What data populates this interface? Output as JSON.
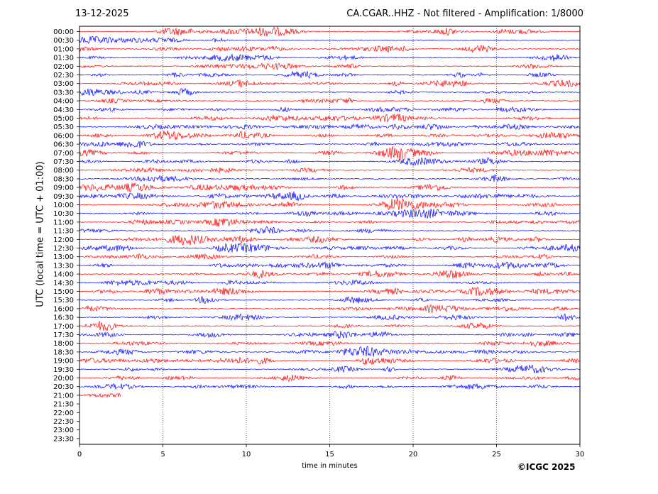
{
  "header": {
    "date": "13-12-2025",
    "title": "CA.CGAR..HHZ - Not filtered - Amplification: 1/8000"
  },
  "footer": {
    "copyright": "©ICGC 2025"
  },
  "colors": {
    "odd_trace": "#ff0000",
    "even_trace": "#0000ff",
    "axis": "#000000",
    "grid": "#000000"
  },
  "chart_data": {
    "type": "line",
    "title": "CA.CGAR..HHZ - Not filtered - Amplification: 1/8000",
    "xlabel": "time in minutes",
    "ylabel": "UTC (local time = UTC + 01:00)",
    "xlim": [
      0,
      30
    ],
    "x_ticks": [
      "0",
      "5",
      "10",
      "15",
      "20",
      "25",
      "30"
    ],
    "grid": "vertical dotted lines at each x tick",
    "row_labels": [
      "00:00",
      "00:30",
      "01:00",
      "01:30",
      "02:00",
      "02:30",
      "03:00",
      "03:30",
      "04:00",
      "04:30",
      "05:00",
      "05:30",
      "06:00",
      "06:30",
      "07:00",
      "07:30",
      "08:00",
      "08:30",
      "09:00",
      "09:30",
      "10:00",
      "10:30",
      "11:00",
      "11:30",
      "12:00",
      "12:30",
      "13:00",
      "13:30",
      "14:00",
      "14:30",
      "15:00",
      "15:30",
      "16:00",
      "16:30",
      "17:00",
      "17:30",
      "18:00",
      "18:30",
      "19:00",
      "19:30",
      "20:00",
      "20:30",
      "21:00",
      "21:30",
      "22:00",
      "22:30",
      "23:00",
      "23:30"
    ],
    "trace_color_pattern": [
      "red",
      "blue"
    ],
    "recorded_rows": 43,
    "last_row_end_minute": 2.5,
    "note_series": "seismogram trace per 30-minute row; amplitude small noise"
  }
}
